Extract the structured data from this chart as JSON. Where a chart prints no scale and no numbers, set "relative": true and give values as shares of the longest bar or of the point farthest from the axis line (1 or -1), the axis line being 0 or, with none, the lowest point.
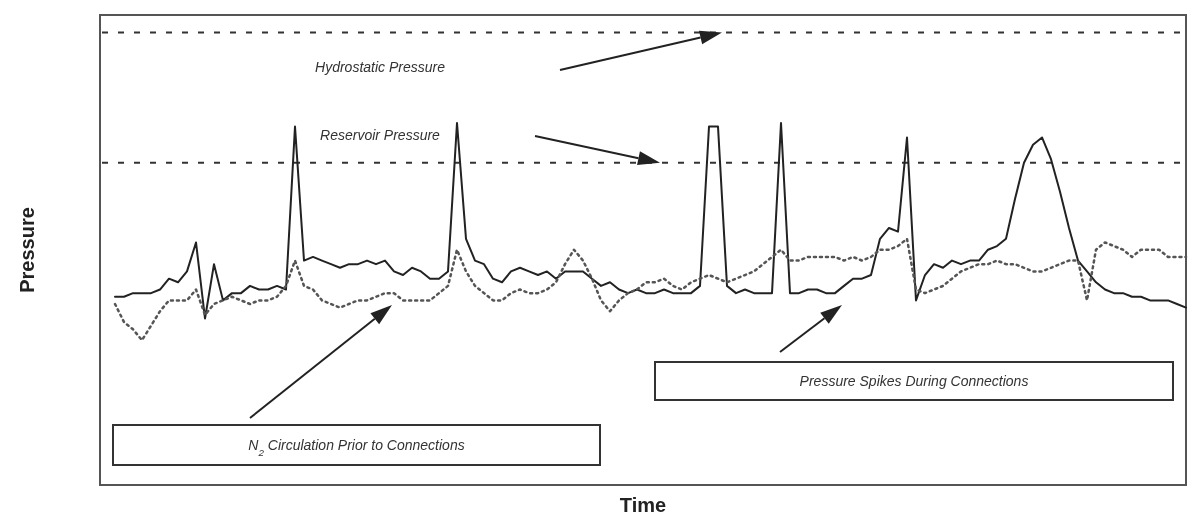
{
  "chart_data": {
    "type": "line",
    "relative": true,
    "xlabel": "Time",
    "ylabel": "Pressure",
    "legend": false,
    "grid": false,
    "marker": "none",
    "categories": [
      null,
      null,
      null,
      null,
      null,
      null,
      null,
      null,
      null,
      null,
      null,
      null,
      null,
      null,
      null,
      null,
      null,
      null,
      null,
      null,
      null,
      null,
      null,
      null,
      null,
      null,
      null,
      null,
      null,
      null,
      null,
      null,
      null,
      null,
      null,
      null,
      null,
      null,
      null,
      null,
      null,
      null,
      null,
      null,
      null,
      null,
      null,
      null,
      null,
      null,
      null,
      null,
      null,
      null,
      null,
      null,
      null,
      null,
      null,
      null,
      null,
      null,
      null,
      null,
      null,
      null,
      null,
      null,
      null,
      null,
      null,
      null,
      null,
      null,
      null,
      null,
      null,
      null,
      null,
      null,
      null,
      null,
      null,
      null,
      null,
      null,
      null,
      null,
      null,
      null,
      null,
      null,
      null,
      null,
      null,
      null,
      null,
      null,
      null,
      null,
      null,
      null,
      null,
      null,
      null,
      null,
      null,
      null,
      null,
      null,
      null,
      null,
      null,
      null,
      null,
      null,
      null,
      null,
      null,
      null
    ],
    "series": [
      {
        "color": "#222222",
        "line_style": "solid",
        "values": [
          0.52,
          0.52,
          0.53,
          0.53,
          0.53,
          0.54,
          0.57,
          0.56,
          0.59,
          0.67,
          0.46,
          0.61,
          0.51,
          0.53,
          0.53,
          0.55,
          0.54,
          0.54,
          0.55,
          0.54,
          0.99,
          0.62,
          0.63,
          0.62,
          0.61,
          0.6,
          0.61,
          0.61,
          0.62,
          0.61,
          0.62,
          0.59,
          0.58,
          0.6,
          0.59,
          0.57,
          0.57,
          0.59,
          1,
          0.68,
          0.62,
          0.61,
          0.57,
          0.56,
          0.59,
          0.6,
          0.59,
          0.58,
          0.59,
          0.57,
          0.59,
          0.59,
          0.59,
          0.57,
          0.55,
          0.56,
          0.54,
          0.53,
          0.54,
          0.53,
          0.53,
          0.54,
          0.53,
          0.53,
          0.53,
          0.55,
          0.99,
          0.99,
          0.55,
          0.53,
          0.54,
          0.53,
          0.53,
          0.53,
          1,
          0.53,
          0.53,
          0.54,
          0.54,
          0.53,
          0.53,
          0.55,
          0.57,
          0.57,
          0.58,
          0.68,
          0.71,
          0.7,
          0.96,
          0.51,
          0.58,
          0.61,
          0.6,
          0.62,
          0.61,
          0.62,
          0.62,
          0.65,
          0.66,
          0.68,
          0.79,
          0.89,
          0.94,
          0.96,
          0.9,
          0.81,
          0.71,
          0.62,
          0.59,
          0.56,
          0.54,
          0.53,
          0.53,
          0.52,
          0.52,
          0.51,
          0.51,
          0.51,
          0.5,
          0.49
        ]
      },
      {
        "color": "#555555",
        "line_style": "dotted",
        "values": [
          0.5,
          0.45,
          0.43,
          0.4,
          0.44,
          0.48,
          0.51,
          0.51,
          0.51,
          0.54,
          0.47,
          0.5,
          0.51,
          0.52,
          0.51,
          0.5,
          0.51,
          0.51,
          0.52,
          0.55,
          0.62,
          0.55,
          0.54,
          0.51,
          0.5,
          0.49,
          0.5,
          0.51,
          0.51,
          0.52,
          0.53,
          0.53,
          0.51,
          0.51,
          0.51,
          0.51,
          0.53,
          0.55,
          0.65,
          0.59,
          0.55,
          0.53,
          0.51,
          0.51,
          0.53,
          0.54,
          0.53,
          0.53,
          0.54,
          0.56,
          0.61,
          0.65,
          0.62,
          0.57,
          0.51,
          0.48,
          0.51,
          0.53,
          0.54,
          0.56,
          0.56,
          0.57,
          0.55,
          0.54,
          0.56,
          0.57,
          0.58,
          0.57,
          0.56,
          0.57,
          0.58,
          0.59,
          0.61,
          0.63,
          0.65,
          0.62,
          0.62,
          0.63,
          0.63,
          0.63,
          0.63,
          0.62,
          0.63,
          0.62,
          0.63,
          0.65,
          0.65,
          0.66,
          0.68,
          0.54,
          0.53,
          0.54,
          0.55,
          0.57,
          0.59,
          0.6,
          0.61,
          0.61,
          0.62,
          0.61,
          0.61,
          0.6,
          0.59,
          0.59,
          0.6,
          0.61,
          0.62,
          0.62,
          0.51,
          0.65,
          0.67,
          0.66,
          0.65,
          0.63,
          0.65,
          0.65,
          0.65,
          0.63,
          0.63,
          0.63
        ]
      }
    ],
    "ref_lines": [
      {
        "axis": "y",
        "value": 1.25,
        "label": "Hydrostatic Pressure",
        "color": "#333333",
        "line_style": "dashed"
      },
      {
        "axis": "y",
        "value": 0.89,
        "label": "Reservoir Pressure",
        "color": "#333333",
        "line_style": "dashed"
      }
    ],
    "annotations": [
      "N$_{2}$ Circulation Prior to Connections",
      "Pressure Spikes During Connections"
    ]
  }
}
